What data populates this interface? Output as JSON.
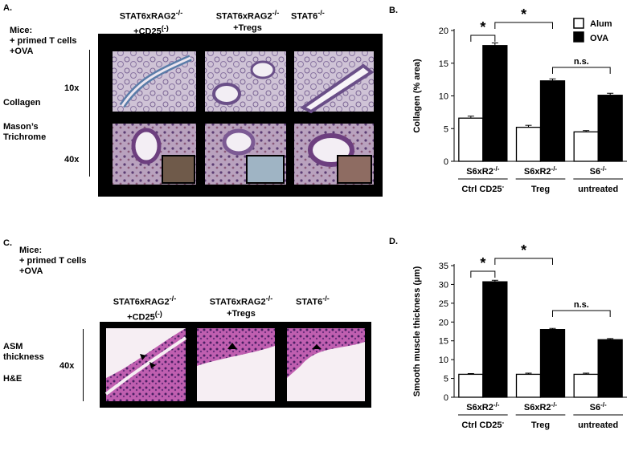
{
  "panelA": {
    "letter": "A.",
    "mice_label": "Mice:",
    "treatment_line1": "+ primed T cells",
    "treatment_line2": "+OVA",
    "stain_line1": "Collagen",
    "stain_line2": "Mason’s",
    "stain_line3": "Trichrome",
    "mag_10x": "10x",
    "mag_40x": "40x",
    "columns": [
      {
        "line1": "STAT6xRAG2",
        "sup1": "-/-",
        "line2": "+CD25",
        "sup2": "(-)"
      },
      {
        "line1": "STAT6xRAG2",
        "sup1": "-/-",
        "line2": "+Tregs",
        "sup2": ""
      },
      {
        "line1": "STAT6",
        "sup1": "-/-",
        "line2": "",
        "sup2": ""
      }
    ]
  },
  "panelC": {
    "letter": "C.",
    "mice_label": "Mice:",
    "treatment_line1": "+ primed T cells",
    "treatment_line2": "+OVA",
    "stain_line1": "ASM",
    "stain_line2": "thickness",
    "stain_line3": "H&E",
    "mag_40x": "40x",
    "columns": [
      {
        "line1": "STAT6xRAG2",
        "sup1": "-/-",
        "line2": "+CD25",
        "sup2": "(-)"
      },
      {
        "line1": "STAT6xRAG2",
        "sup1": "-/-",
        "line2": "+Tregs",
        "sup2": ""
      },
      {
        "line1": "STAT6",
        "sup1": "-/-",
        "line2": "",
        "sup2": ""
      }
    ]
  },
  "colors": {
    "alum": "#ffffff",
    "ova": "#000000",
    "trichrome_bg": "#c8b9cc",
    "trichrome_tissue": "#6b4f86",
    "trichrome_collagen": "#6d8fb3",
    "he_bg": "#f4e8ef",
    "he_tissue": "#b24aa3",
    "he_nuclei": "#4a1f63"
  },
  "chart_data": [
    {
      "panel": "B.",
      "type": "bar",
      "ylabel": "Collagen (% area)",
      "ylim": [
        0,
        20
      ],
      "yticks": [
        0,
        5,
        10,
        15,
        20
      ],
      "legend": {
        "placement": "top-right",
        "entries": [
          "Alum",
          "OVA"
        ]
      },
      "groups": [
        {
          "label": "S6xR2",
          "sup": "-/-",
          "sublabel": "Ctrl CD25",
          "subsup": "-"
        },
        {
          "label": "S6xR2",
          "sup": "-/-",
          "sublabel": "Treg",
          "subsup": ""
        },
        {
          "label": "S6",
          "sup": "-/-",
          "sublabel": "untreated",
          "subsup": ""
        }
      ],
      "series": [
        {
          "name": "Alum",
          "values": [
            6.6,
            5.2,
            4.5
          ],
          "errors": [
            0.3,
            0.3,
            0.2
          ]
        },
        {
          "name": "OVA",
          "values": [
            17.7,
            12.3,
            10.1
          ],
          "errors": [
            0.4,
            0.3,
            0.3
          ]
        }
      ],
      "annotations": [
        "*",
        "*",
        "n.s."
      ]
    },
    {
      "panel": "D.",
      "type": "bar",
      "ylabel": "Smooth muscle thickness (μm)",
      "ylim": [
        0,
        35
      ],
      "yticks": [
        0,
        5,
        10,
        15,
        20,
        25,
        30,
        35
      ],
      "groups": [
        {
          "label": "S6xR2",
          "sup": "-/-",
          "sublabel": "Ctrl CD25",
          "subsup": "-"
        },
        {
          "label": "S6xR2",
          "sup": "-/-",
          "sublabel": "Treg",
          "subsup": ""
        },
        {
          "label": "S6",
          "sup": "-/-",
          "sublabel": "untreated",
          "subsup": ""
        }
      ],
      "series": [
        {
          "name": "Alum",
          "values": [
            6.1,
            6.1,
            6.1
          ],
          "errors": [
            0.2,
            0.3,
            0.3
          ]
        },
        {
          "name": "OVA",
          "values": [
            30.7,
            18.0,
            15.3
          ],
          "errors": [
            0.4,
            0.3,
            0.3
          ]
        }
      ],
      "annotations": [
        "*",
        "*",
        "n.s."
      ]
    }
  ]
}
